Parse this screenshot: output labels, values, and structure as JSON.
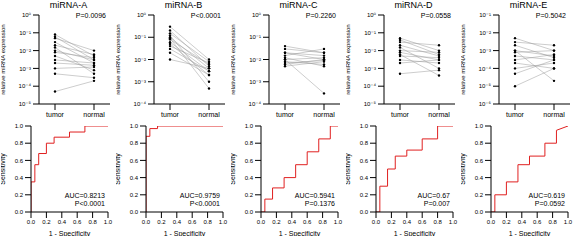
{
  "chart_data": [
    {
      "type": "paired_dot",
      "title": "miRNA-A",
      "annotation": "P=0.0096",
      "y_label": "relative miRNA expression",
      "categories": [
        "tumor",
        "normal"
      ],
      "log": "y",
      "color": "#000000",
      "ylim": [
        1e-05,
        1
      ],
      "yticks": [
        {
          "value": 1e-05,
          "label": "10⁻⁵"
        },
        {
          "value": 0.0001,
          "label": "10⁻⁴"
        },
        {
          "value": 0.001,
          "label": "10⁻³"
        },
        {
          "value": 0.01,
          "label": "10⁻²"
        },
        {
          "value": 0.1,
          "label": "10⁻¹"
        },
        {
          "value": 1,
          "label": "10⁰"
        }
      ],
      "series": [
        {
          "values": [
            0.08,
            0.005
          ]
        },
        {
          "values": [
            0.05,
            0.01
          ]
        },
        {
          "values": [
            0.03,
            0.002
          ]
        },
        {
          "values": [
            0.02,
            0.006
          ]
        },
        {
          "values": [
            0.01,
            0.003
          ]
        },
        {
          "values": [
            0.008,
            0.004
          ]
        },
        {
          "values": [
            0.005,
            0.0008
          ]
        },
        {
          "values": [
            0.003,
            0.002
          ]
        },
        {
          "values": [
            0.002,
            0.0015
          ]
        },
        {
          "values": [
            0.06,
            0.003
          ]
        },
        {
          "values": [
            0.015,
            0.0005
          ]
        },
        {
          "values": [
            0.001,
            0.0012
          ]
        },
        {
          "values": [
            0.0005,
            0.0003
          ]
        },
        {
          "values": [
            5e-05,
            0.0002
          ]
        }
      ]
    },
    {
      "type": "paired_dot",
      "title": "miRNA-B",
      "annotation": "P<0.0001",
      "y_label": "relative miRNA expression",
      "categories": [
        "tumor",
        "normal"
      ],
      "log": "y",
      "color": "#000000",
      "ylim": [
        0.0001,
        1
      ],
      "yticks": [
        {
          "value": 0.0001,
          "label": "10⁻⁴"
        },
        {
          "value": 0.001,
          "label": "10⁻³"
        },
        {
          "value": 0.01,
          "label": "10⁻²"
        },
        {
          "value": 0.1,
          "label": "10⁻¹"
        },
        {
          "value": 1,
          "label": "10⁰"
        }
      ],
      "series": [
        {
          "values": [
            0.3,
            0.01
          ]
        },
        {
          "values": [
            0.2,
            0.005
          ]
        },
        {
          "values": [
            0.15,
            0.008
          ]
        },
        {
          "values": [
            0.1,
            0.004
          ]
        },
        {
          "values": [
            0.08,
            0.006
          ]
        },
        {
          "values": [
            0.06,
            0.003
          ]
        },
        {
          "values": [
            0.05,
            0.002
          ]
        },
        {
          "values": [
            0.04,
            0.007
          ]
        },
        {
          "values": [
            0.03,
            0.003
          ]
        },
        {
          "values": [
            0.02,
            0.002
          ]
        },
        {
          "values": [
            0.12,
            0.001
          ]
        },
        {
          "values": [
            0.09,
            0.0005
          ]
        },
        {
          "values": [
            0.01,
            0.004
          ]
        }
      ]
    },
    {
      "type": "paired_dot",
      "title": "miRNA-C",
      "annotation": "P=0.2260",
      "y_label": "relative miRNA expression",
      "categories": [
        "tumor",
        "normal"
      ],
      "log": "y",
      "color": "#000000",
      "ylim": [
        0.0001,
        1
      ],
      "yticks": [
        {
          "value": 0.0001,
          "label": "10⁻⁴"
        },
        {
          "value": 0.001,
          "label": "10⁻³"
        },
        {
          "value": 0.01,
          "label": "10⁻²"
        },
        {
          "value": 0.1,
          "label": "10⁻¹"
        },
        {
          "value": 1,
          "label": "10⁰"
        }
      ],
      "series": [
        {
          "values": [
            0.03,
            0.02
          ]
        },
        {
          "values": [
            0.02,
            0.01
          ]
        },
        {
          "values": [
            0.015,
            0.03
          ]
        },
        {
          "values": [
            0.01,
            0.012
          ]
        },
        {
          "values": [
            0.008,
            0.006
          ]
        },
        {
          "values": [
            0.006,
            0.01
          ]
        },
        {
          "values": [
            0.012,
            0.005
          ]
        },
        {
          "values": [
            0.02,
            0.015
          ]
        },
        {
          "values": [
            0.005,
            0.008
          ]
        },
        {
          "values": [
            0.01,
            0.0003
          ]
        },
        {
          "values": [
            0.04,
            0.02
          ]
        },
        {
          "values": [
            0.007,
            0.009
          ]
        }
      ]
    },
    {
      "type": "paired_dot",
      "title": "miRNA-D",
      "annotation": "P=0.0558",
      "y_label": "relative miRNA expression",
      "categories": [
        "tumor",
        "normal"
      ],
      "log": "y",
      "color": "#000000",
      "ylim": [
        1e-05,
        1
      ],
      "yticks": [
        {
          "value": 1e-05,
          "label": "10⁻⁵"
        },
        {
          "value": 0.0001,
          "label": "10⁻⁴"
        },
        {
          "value": 0.001,
          "label": "10⁻³"
        },
        {
          "value": 0.01,
          "label": "10⁻²"
        },
        {
          "value": 0.1,
          "label": "10⁻¹"
        },
        {
          "value": 1,
          "label": "10⁰"
        }
      ],
      "series": [
        {
          "values": [
            0.05,
            0.01
          ]
        },
        {
          "values": [
            0.03,
            0.02
          ]
        },
        {
          "values": [
            0.02,
            0.005
          ]
        },
        {
          "values": [
            0.01,
            0.008
          ]
        },
        {
          "values": [
            0.008,
            0.003
          ]
        },
        {
          "values": [
            0.005,
            0.004
          ]
        },
        {
          "values": [
            0.003,
            0.002
          ]
        },
        {
          "values": [
            0.015,
            0.001
          ]
        },
        {
          "values": [
            0.002,
            0.003
          ]
        },
        {
          "values": [
            0.0005,
            0.0008
          ]
        },
        {
          "values": [
            0.04,
            0.006
          ]
        },
        {
          "values": [
            0.006,
            0.0004
          ]
        }
      ]
    },
    {
      "type": "paired_dot",
      "title": "miRNA-E",
      "annotation": "P=0.5042",
      "y_label": "relative miRNA expression",
      "categories": [
        "tumor",
        "normal"
      ],
      "log": "y",
      "color": "#000000",
      "ylim": [
        1e-06,
        0.1
      ],
      "yticks": [
        {
          "value": 1e-06,
          "label": "10⁻⁶"
        },
        {
          "value": 1e-05,
          "label": "10⁻⁵"
        },
        {
          "value": 0.0001,
          "label": "10⁻⁴"
        },
        {
          "value": 0.001,
          "label": "10⁻³"
        },
        {
          "value": 0.01,
          "label": "10⁻²"
        },
        {
          "value": 0.1,
          "label": "10⁻¹"
        }
      ],
      "series": [
        {
          "values": [
            0.005,
            0.001
          ]
        },
        {
          "values": [
            0.003,
            0.002
          ]
        },
        {
          "values": [
            0.001,
            0.0005
          ]
        },
        {
          "values": [
            0.0008,
            0.001
          ]
        },
        {
          "values": [
            0.0005,
            0.0003
          ]
        },
        {
          "values": [
            0.0003,
            0.0006
          ]
        },
        {
          "values": [
            0.0002,
            0.0001
          ]
        },
        {
          "values": [
            0.002,
            0.0004
          ]
        },
        {
          "values": [
            0.0001,
            0.0002
          ]
        },
        {
          "values": [
            5e-05,
            0.0003
          ]
        },
        {
          "values": [
            0.001,
            2e-05
          ]
        },
        {
          "values": [
            1e-05,
            0.0001
          ]
        }
      ]
    },
    {
      "type": "line",
      "annotations": [
        "AUC=0.8213",
        "P<0.0001"
      ],
      "x_label": "1 - Specificity",
      "y_label": "Sensitivity",
      "color": "#e02020",
      "xlim": [
        0,
        1
      ],
      "ylim": [
        0,
        1
      ],
      "xticks": [
        {
          "value": 0,
          "label": "0.0"
        },
        0.2,
        0.4,
        0.6,
        0.8,
        {
          "value": 1,
          "label": "1.0"
        }
      ],
      "yticks": [
        {
          "value": 0,
          "label": "0.0"
        },
        0.2,
        0.4,
        0.6,
        0.8,
        {
          "value": 1,
          "label": "1.0"
        }
      ],
      "x": [
        0,
        0,
        0.05,
        0.05,
        0.1,
        0.1,
        0.2,
        0.2,
        0.3,
        0.3,
        0.5,
        0.5,
        0.7,
        0.7,
        1
      ],
      "values": [
        0,
        0.35,
        0.35,
        0.55,
        0.55,
        0.68,
        0.68,
        0.8,
        0.8,
        0.87,
        0.87,
        0.93,
        0.93,
        1,
        1
      ]
    },
    {
      "type": "line",
      "annotations": [
        "AUC=0.9759",
        "P<0.0001"
      ],
      "x_label": "1 - Specificity",
      "y_label": "Sensitivity",
      "color": "#e02020",
      "xlim": [
        0,
        1
      ],
      "ylim": [
        0,
        1
      ],
      "xticks": [
        {
          "value": 0,
          "label": "0.0"
        },
        0.2,
        0.4,
        0.6,
        0.8,
        {
          "value": 1,
          "label": "1.0"
        }
      ],
      "yticks": [
        {
          "value": 0,
          "label": "0.0"
        },
        0.2,
        0.4,
        0.6,
        0.8,
        {
          "value": 1,
          "label": "1.0"
        }
      ],
      "x": [
        0,
        0,
        0.05,
        0.05,
        0.15,
        0.15,
        1
      ],
      "values": [
        0,
        0.88,
        0.88,
        0.97,
        0.97,
        1,
        1
      ]
    },
    {
      "type": "line",
      "annotations": [
        "AUC=0.5941",
        "P=0.1376"
      ],
      "x_label": "1 - Specificity",
      "y_label": "Sensitivity",
      "color": "#e02020",
      "xlim": [
        0,
        1
      ],
      "ylim": [
        0,
        1
      ],
      "xticks": [
        {
          "value": 0,
          "label": "0.0"
        },
        0.2,
        0.4,
        0.6,
        0.8,
        {
          "value": 1,
          "label": "1.0"
        }
      ],
      "yticks": [
        {
          "value": 0,
          "label": "0.0"
        },
        0.2,
        0.4,
        0.6,
        0.8,
        {
          "value": 1,
          "label": "1.0"
        }
      ],
      "x": [
        0,
        0.05,
        0.05,
        0.15,
        0.15,
        0.3,
        0.3,
        0.45,
        0.45,
        0.6,
        0.6,
        0.75,
        0.75,
        0.9,
        0.9,
        1
      ],
      "values": [
        0,
        0,
        0.15,
        0.15,
        0.28,
        0.28,
        0.4,
        0.4,
        0.55,
        0.55,
        0.7,
        0.7,
        0.85,
        0.85,
        1,
        1
      ]
    },
    {
      "type": "line",
      "annotations": [
        "AUC=0.67",
        "P=0.007"
      ],
      "x_label": "1 - Specificity",
      "y_label": "Sensitivity",
      "color": "#e02020",
      "xlim": [
        0,
        1
      ],
      "ylim": [
        0,
        1
      ],
      "xticks": [
        {
          "value": 0,
          "label": "0.0"
        },
        0.2,
        0.4,
        0.6,
        0.8,
        {
          "value": 1,
          "label": "1.0"
        }
      ],
      "yticks": [
        {
          "value": 0,
          "label": "0.0"
        },
        0.2,
        0.4,
        0.6,
        0.8,
        {
          "value": 1,
          "label": "1.0"
        }
      ],
      "x": [
        0,
        0.05,
        0.05,
        0.15,
        0.15,
        0.25,
        0.25,
        0.4,
        0.4,
        0.6,
        0.6,
        0.8,
        0.8,
        1
      ],
      "values": [
        0,
        0,
        0.3,
        0.3,
        0.5,
        0.5,
        0.65,
        0.65,
        0.72,
        0.72,
        0.85,
        0.85,
        1,
        1
      ]
    },
    {
      "type": "line",
      "annotations": [
        "AUC=0.619",
        "P=0.0592"
      ],
      "x_label": "1 - Specificity",
      "y_label": "Sensitivity",
      "color": "#e02020",
      "xlim": [
        0,
        1
      ],
      "ylim": [
        0,
        1
      ],
      "xticks": [
        {
          "value": 0,
          "label": "0.0"
        },
        0.2,
        0.4,
        0.6,
        0.8,
        {
          "value": 1,
          "label": "1.0"
        }
      ],
      "yticks": [
        {
          "value": 0,
          "label": "0.0"
        },
        0.2,
        0.4,
        0.6,
        0.8,
        {
          "value": 1,
          "label": "1.0"
        }
      ],
      "x": [
        0,
        0.05,
        0.05,
        0.2,
        0.2,
        0.35,
        0.35,
        0.5,
        0.5,
        0.7,
        0.7,
        0.85,
        0.85,
        1
      ],
      "values": [
        0,
        0,
        0.2,
        0.2,
        0.35,
        0.35,
        0.55,
        0.55,
        0.65,
        0.65,
        0.8,
        0.8,
        0.95,
        1
      ]
    }
  ]
}
